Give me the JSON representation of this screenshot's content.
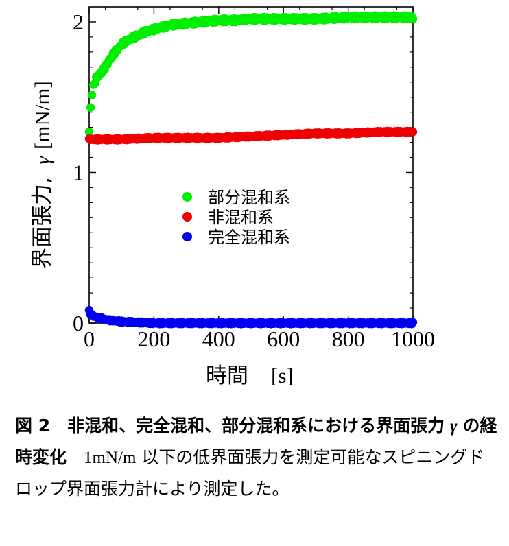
{
  "chart_data": {
    "type": "scatter",
    "xlabel": "時間 [s]",
    "xlabel_main": "時間",
    "xlabel_unit": "[s]",
    "ylabel_main": "界面張力,",
    "ylabel_symbol": "γ",
    "ylabel_unit": "[mN/m]",
    "xlim": [
      0,
      1000
    ],
    "ylim": [
      0,
      2.1
    ],
    "xticks": [
      "0",
      "200",
      "400",
      "600",
      "800",
      "1000"
    ],
    "yticks": [
      "0",
      "1",
      "2"
    ],
    "grid": false,
    "legend_position": "center",
    "series": [
      {
        "name": "部分混和系",
        "color": "#00ee00",
        "x": [
          0,
          5,
          10,
          20,
          30,
          40,
          50,
          60,
          80,
          100,
          120,
          150,
          180,
          200,
          250,
          300,
          350,
          400,
          450,
          500,
          600,
          700,
          800,
          900,
          1000
        ],
        "y": [
          1.27,
          1.45,
          1.55,
          1.62,
          1.65,
          1.67,
          1.7,
          1.74,
          1.8,
          1.85,
          1.88,
          1.91,
          1.94,
          1.95,
          1.98,
          1.99,
          2.0,
          2.01,
          2.01,
          2.02,
          2.02,
          2.02,
          2.03,
          2.03,
          2.03
        ]
      },
      {
        "name": "非混和系",
        "color": "#ee0000",
        "x": [
          0,
          50,
          100,
          200,
          300,
          400,
          500,
          600,
          700,
          800,
          900,
          1000
        ],
        "y": [
          1.22,
          1.22,
          1.22,
          1.23,
          1.23,
          1.23,
          1.24,
          1.25,
          1.26,
          1.26,
          1.27,
          1.27
        ]
      },
      {
        "name": "完全混和系",
        "color": "#0000ee",
        "x": [
          0,
          5,
          10,
          20,
          30,
          40,
          50,
          60,
          80,
          100,
          150,
          200,
          300,
          400,
          500,
          600,
          700,
          800,
          900,
          1000
        ],
        "y": [
          0.08,
          0.06,
          0.05,
          0.04,
          0.035,
          0.03,
          0.025,
          0.02,
          0.015,
          0.01,
          0.005,
          0.0,
          0.0,
          0.0,
          0.0,
          0.0,
          0.0,
          0.0,
          0.0,
          0.0
        ]
      }
    ]
  },
  "caption": {
    "fig_label": "図 2",
    "bold_text": "非混和、完全混和、部分混和系における界面張力",
    "gamma": "γ",
    "bold_tail": "の経時変化",
    "body_lead": "1mN/m",
    "body_text": "以下の低界面張力を測定可能なスピニングドロップ界面張力計により測定した。"
  }
}
